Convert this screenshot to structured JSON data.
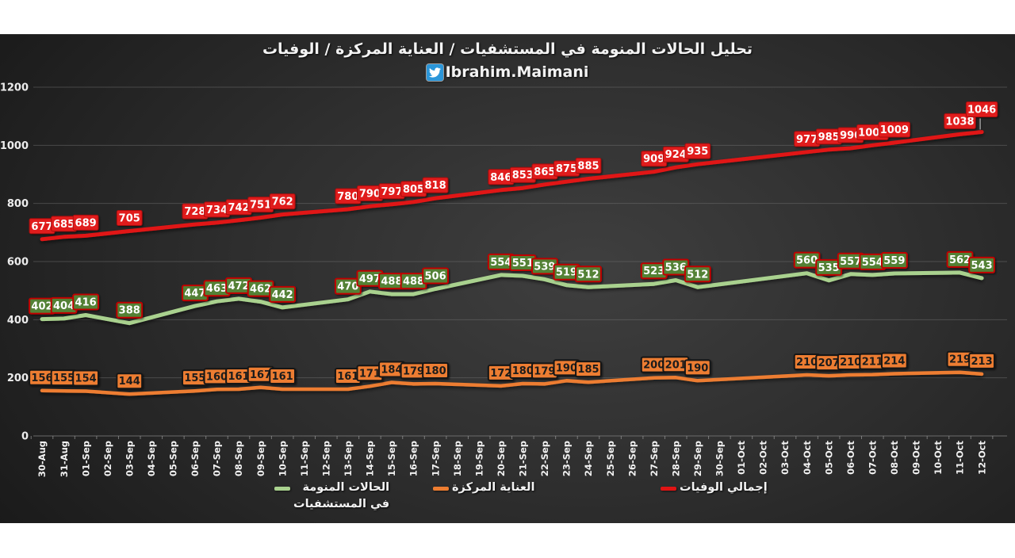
{
  "header": {
    "subtitle": "Ibrahim.Maimani",
    "subtitle_icon": "twitter-icon",
    "twitter_blue": "#2b96d9"
  },
  "chart_data": {
    "type": "line",
    "title": "تحليل الحالات المنومة في المستشفيات / العناية المركزة / الوفيات",
    "ylim": [
      0,
      1200
    ],
    "y_ticks": [
      0,
      200,
      400,
      600,
      800,
      1000,
      1200
    ],
    "grid": true,
    "legend_position": "bottom",
    "background": "dark-gradient",
    "x_axis_dates": [
      "30-Aug",
      "31-Aug",
      "01-Sep",
      "02-Sep",
      "03-Sep",
      "04-Sep",
      "05-Sep",
      "06-Sep",
      "07-Sep",
      "08-Sep",
      "09-Sep",
      "10-Sep",
      "11-Sep",
      "12-Sep",
      "13-Sep",
      "14-Sep",
      "15-Sep",
      "16-Sep",
      "17-Sep",
      "18-Sep",
      "19-Sep",
      "20-Sep",
      "21-Sep",
      "22-Sep",
      "23-Sep",
      "24-Sep",
      "25-Sep",
      "26-Sep",
      "27-Sep",
      "28-Sep",
      "29-Sep",
      "30-Sep",
      "01-Oct",
      "02-Oct",
      "03-Oct",
      "04-Oct",
      "05-Oct",
      "06-Oct",
      "07-Oct",
      "08-Oct",
      "09-Oct",
      "10-Oct",
      "11-Oct",
      "12-Oct"
    ],
    "labeled_dates": [
      "30-Aug",
      "31-Aug",
      "01-Sep",
      "03-Sep",
      "06-Sep",
      "07-Sep",
      "08-Sep",
      "09-Sep",
      "10-Sep",
      "13-Sep",
      "14-Sep",
      "15-Sep",
      "16-Sep",
      "17-Sep",
      "20-Sep",
      "21-Sep",
      "22-Sep",
      "23-Sep",
      "24-Sep",
      "27-Sep",
      "28-Sep",
      "29-Sep",
      "04-Oct",
      "05-Oct",
      "06-Oct",
      "07-Oct",
      "08-Oct",
      "11-Oct",
      "12-Oct"
    ],
    "series": [
      {
        "id": "icu",
        "name": "العناية المركزة",
        "color": "#ed7d31",
        "line_width": 4.5,
        "label_bg": "#ed7d31",
        "label_border": "#141414",
        "label_border_width": 2,
        "label_text_color": "#1a1a1a",
        "values": [
          156,
          155,
          154,
          144,
          155,
          160,
          161,
          167,
          161,
          161,
          171,
          184,
          179,
          180,
          172,
          180,
          179,
          190,
          185,
          200,
          201,
          190,
          210,
          207,
          210,
          211,
          214,
          219,
          213
        ]
      },
      {
        "id": "hospitalized",
        "name": "الحالات المنومة في المستشفيات",
        "color": "#a9d18e",
        "line_width": 5,
        "label_bg": "#538135",
        "label_border": "#c00000",
        "label_border_width": 2,
        "label_text_color": "#ffffff",
        "values": [
          402,
          404,
          416,
          388,
          447,
          463,
          472,
          462,
          442,
          470,
          497,
          488,
          488,
          506,
          554,
          551,
          539,
          519,
          512,
          523,
          536,
          512,
          560,
          535,
          557,
          554,
          559,
          562,
          543
        ]
      },
      {
        "id": "deaths",
        "name": "إجمالي الوفيات",
        "color": "#e01414",
        "line_width": 5,
        "label_bg": "#e01d1d",
        "label_border": "#a80d0d",
        "label_border_width": 1,
        "label_text_color": "#ffffff",
        "values": [
          677,
          685,
          689,
          705,
          728,
          734,
          742,
          751,
          762,
          780,
          790,
          797,
          805,
          818,
          846,
          853,
          865,
          875,
          885,
          909,
          924,
          935,
          977,
          985,
          990,
          1000,
          1009,
          1038,
          1046
        ]
      }
    ],
    "legend": {
      "items": [
        {
          "id": "hospitalized",
          "color": "#a9d18e",
          "line1": "الحالات المنومة",
          "line2": "في المستشفيات"
        },
        {
          "id": "icu",
          "color": "#ed7d31",
          "line1": "العناية المركزة"
        },
        {
          "id": "deaths",
          "color": "#e01414",
          "line1": "إجمالي الوفيات"
        }
      ]
    }
  }
}
